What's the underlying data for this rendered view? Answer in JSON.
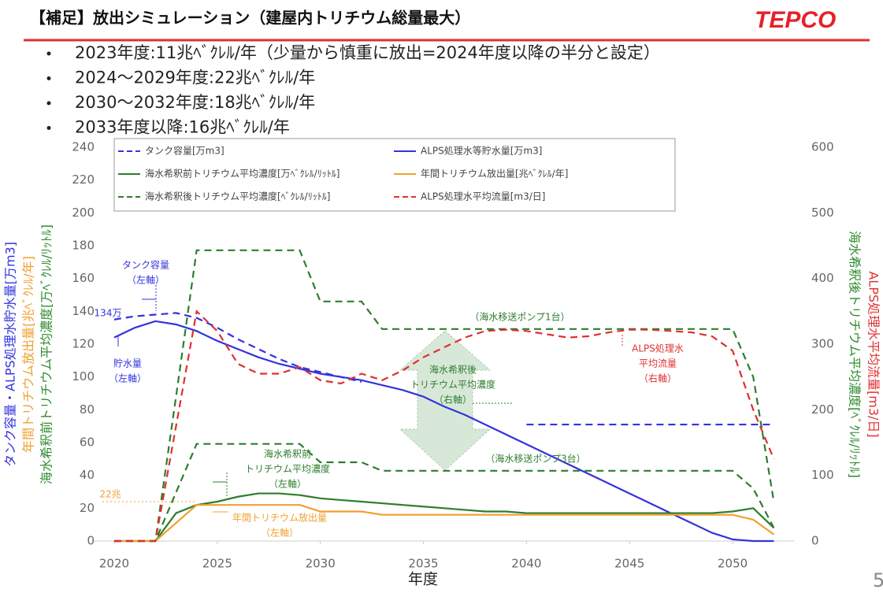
{
  "header": {
    "title": "【補足】放出シミュレーション（建屋内トリチウム総量最大）",
    "logo": "TEPCO",
    "page": "5"
  },
  "bullets": [
    "2023年度:11兆ﾍﾞｸﾚﾙ/年（少量から慎重に放出=2024年度以降の半分と設定）",
    "2024～2029年度:22兆ﾍﾞｸﾚﾙ/年",
    "2030～2032年度:18兆ﾍﾞｸﾚﾙ/年",
    "2033年度以降:16兆ﾍﾞｸﾚﾙ/年"
  ],
  "chart_data": {
    "type": "line",
    "x_label": "年度",
    "y_labels": [
      {
        "text": "タンク容量・ALPS処理水貯水量[万m3]",
        "color": "#3333dd"
      },
      {
        "text": "年間トリチウム放出量[兆ﾍﾞｸﾚﾙ/年]",
        "color": "#f0a030"
      },
      {
        "text": "海水希釈前トリチウム平均濃度[万ﾍﾞｸﾚﾙ/ﾘｯﾄﾙ]",
        "color": "#2e8b2e"
      }
    ],
    "y2_labels": [
      {
        "text": "海水希釈後トリチウム平均濃度[ﾍﾞｸﾚﾙ/ﾘｯﾄﾙ]",
        "color": "#2e8b2e"
      },
      {
        "text": "ALPS処理水平均流量[m3/日]",
        "color": "#e03030"
      }
    ],
    "xlim": [
      2019,
      2053
    ],
    "xticks": [
      2020,
      2025,
      2030,
      2035,
      2040,
      2045,
      2050
    ],
    "ylim": [
      0,
      240
    ],
    "yticks": [
      0,
      20,
      40,
      60,
      80,
      100,
      120,
      140,
      160,
      180,
      200,
      220,
      240
    ],
    "y2lim": [
      0,
      600
    ],
    "y2ticks": [
      0,
      100,
      200,
      300,
      400,
      500,
      600
    ],
    "legend": "top-left",
    "x": [
      2020,
      2021,
      2022,
      2023,
      2024,
      2025,
      2026,
      2027,
      2028,
      2029,
      2030,
      2031,
      2032,
      2033,
      2034,
      2035,
      2036,
      2037,
      2038,
      2039,
      2040,
      2041,
      2042,
      2043,
      2044,
      2045,
      2046,
      2047,
      2048,
      2049,
      2050,
      2051,
      2052
    ],
    "series": [
      {
        "name": "タンク容量[万m3]",
        "color": "#3333dd",
        "dashed": true,
        "values": [
          135,
          137,
          138,
          139,
          136,
          130,
          123,
          117,
          111,
          106,
          103,
          100,
          97,
          null,
          null,
          null,
          null,
          null,
          null,
          null,
          71,
          71,
          71,
          71,
          71,
          71,
          71,
          71,
          71,
          71,
          71,
          71,
          71
        ]
      },
      {
        "name": "ALPS処理水等貯水量[万m3]",
        "color": "#3333dd",
        "dashed": false,
        "values": [
          124,
          130,
          134,
          132,
          128,
          122,
          117,
          112,
          108,
          105,
          102,
          100,
          98,
          95,
          92,
          88,
          82,
          77,
          71,
          65,
          59,
          53,
          47,
          41,
          35,
          29,
          23,
          17,
          11,
          5,
          1,
          0,
          0
        ]
      },
      {
        "name": "海水希釈前トリチウム平均濃度[万ﾍﾞｸﾚﾙ/ﾘｯﾄﾙ]",
        "color": "#2e7d2e",
        "dashed": false,
        "values": [
          0,
          0,
          0,
          17,
          22,
          24,
          27,
          29,
          29,
          28,
          26,
          25,
          24,
          23,
          22,
          21,
          20,
          19,
          18,
          18,
          17,
          17,
          17,
          17,
          17,
          17,
          17,
          17,
          17,
          17,
          18,
          20,
          8
        ]
      },
      {
        "name": "年間トリチウム放出量[兆ﾍﾞｸﾚﾙ/年]",
        "color": "#f0a030",
        "dashed": false,
        "values": [
          0,
          0,
          0,
          11,
          22,
          22,
          22,
          22,
          22,
          22,
          18,
          18,
          18,
          16,
          16,
          16,
          16,
          16,
          16,
          16,
          16,
          16,
          16,
          16,
          16,
          16,
          16,
          16,
          16,
          16,
          16,
          13,
          4
        ]
      },
      {
        "name": "海水希釈後トリチウム平均濃度[ﾍﾞｸﾚﾙ/ﾘｯﾄﾙ]",
        "color": "#2e7d2e",
        "dashed": true,
        "axis": "y2",
        "values": [
          0,
          0,
          0,
          220,
          443,
          443,
          443,
          443,
          443,
          443,
          365,
          365,
          365,
          323,
          323,
          323,
          323,
          323,
          323,
          323,
          323,
          323,
          323,
          323,
          323,
          323,
          323,
          323,
          323,
          323,
          323,
          250,
          60
        ]
      },
      {
        "color": "#2e7d2e",
        "dashed": true,
        "axis": "y2",
        "values": [
          0,
          0,
          0,
          74,
          148,
          148,
          148,
          148,
          148,
          148,
          120,
          120,
          120,
          107,
          107,
          107,
          107,
          107,
          107,
          107,
          107,
          107,
          107,
          107,
          107,
          107,
          107,
          107,
          107,
          107,
          107,
          80,
          20
        ]
      },
      {
        "name": "ALPS処理水平均流量[m3/日]",
        "color": "#e03030",
        "dashed": true,
        "axis": "y2",
        "values": [
          0,
          0,
          0,
          175,
          350,
          320,
          270,
          255,
          255,
          265,
          245,
          240,
          255,
          245,
          260,
          280,
          295,
          310,
          320,
          322,
          320,
          315,
          310,
          312,
          318,
          322,
          322,
          320,
          318,
          312,
          290,
          200,
          125
        ]
      }
    ],
    "annotations": [
      {
        "lines": [
          "タンク容量",
          "（左軸）"
        ],
        "color": "#3333dd"
      },
      {
        "lines": [
          "134万"
        ],
        "color": "#3333dd"
      },
      {
        "lines": [
          "貯水量",
          "（左軸）"
        ],
        "color": "#3333dd"
      },
      {
        "lines": [
          "（海水移送ポンプ1台）"
        ],
        "color": "#2e7d2e"
      },
      {
        "lines": [
          "海水希釈後",
          "トリチウム平均濃度",
          "（右軸）"
        ],
        "color": "#2e7d2e"
      },
      {
        "lines": [
          "ALPS処理水",
          "平均流量",
          "（右軸）"
        ],
        "color": "#e03030"
      },
      {
        "lines": [
          "（海水移送ポンプ3台）"
        ],
        "color": "#2e7d2e"
      },
      {
        "lines": [
          "海水希釈前",
          "トリチウム平均濃度",
          "（左軸）"
        ],
        "color": "#2e7d2e"
      },
      {
        "lines": [
          "22兆"
        ],
        "color": "#f0a030"
      },
      {
        "lines": [
          "年間トリチウム放出量",
          "（左軸）"
        ],
        "color": "#f0a030"
      }
    ]
  }
}
